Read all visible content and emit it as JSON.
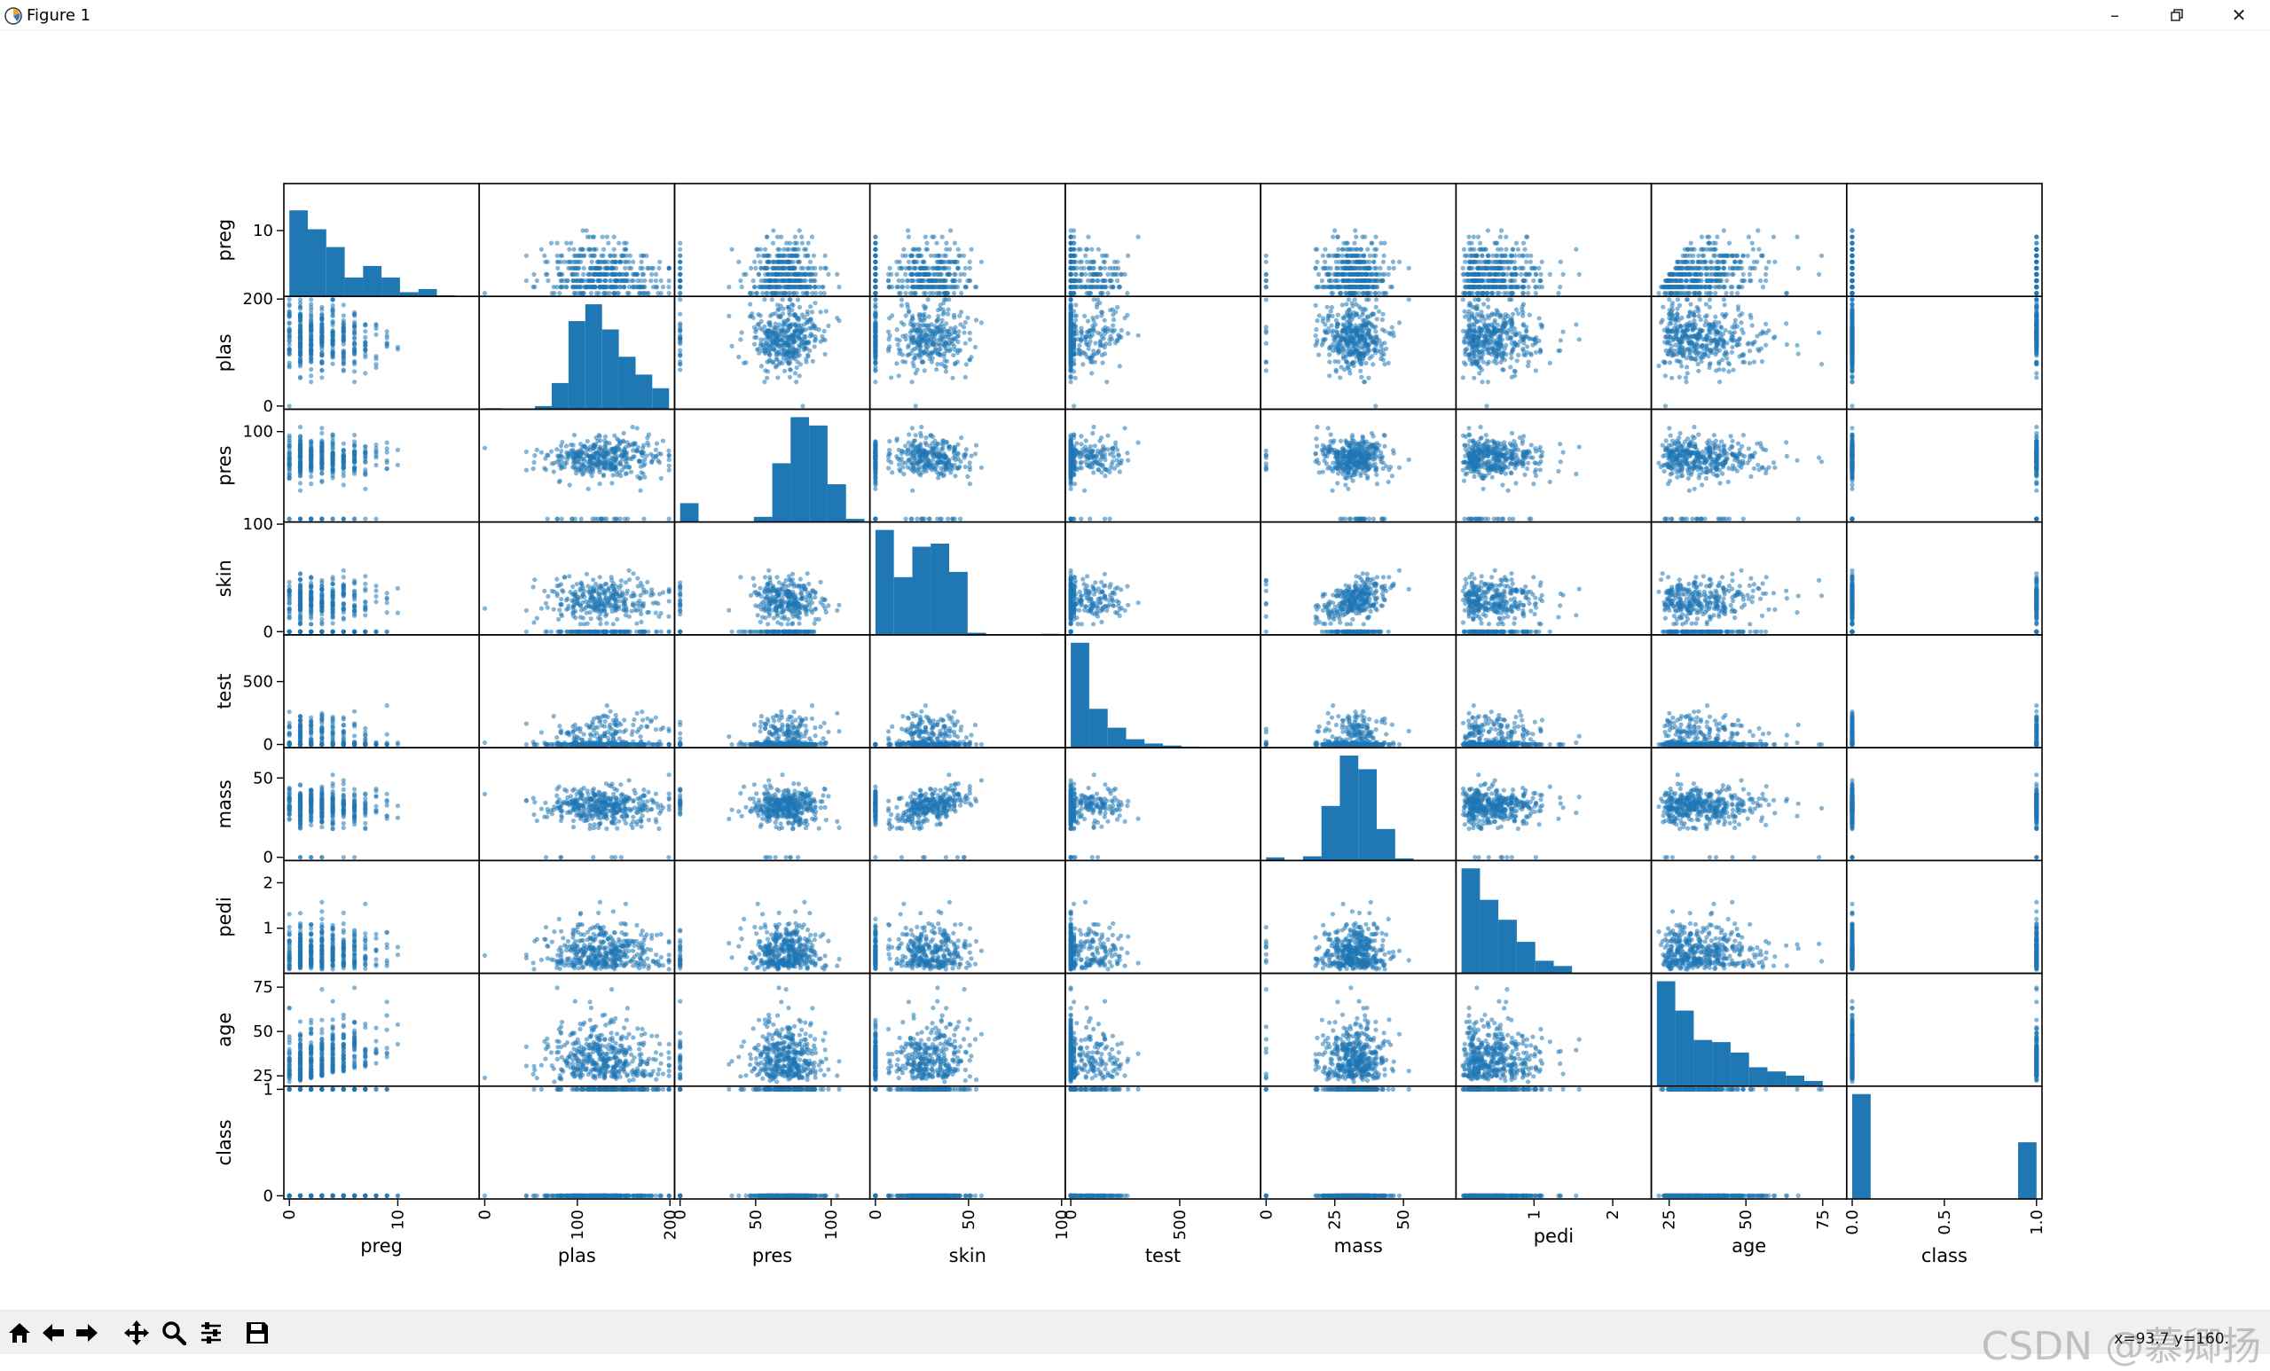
{
  "window": {
    "title": "Figure 1",
    "minimize_icon": "minimize-icon",
    "restore_icon": "restore-icon",
    "close_icon": "close-icon"
  },
  "toolbar": {
    "buttons": [
      "home-icon",
      "back-icon",
      "forward-icon",
      "pan-icon",
      "zoom-icon",
      "configure-subplots-icon",
      "save-icon"
    ],
    "coords": "x=93.7 y=160.",
    "watermark": "CSDN @慕卿扬"
  },
  "chart_data": {
    "type": "scatter",
    "variables": [
      "preg",
      "plas",
      "pres",
      "skin",
      "test",
      "mass",
      "pedi",
      "age",
      "class"
    ],
    "point_color": "#1f77b4",
    "ranges": {
      "preg": [
        0,
        17
      ],
      "plas": [
        0,
        199
      ],
      "pres": [
        0,
        122
      ],
      "skin": [
        0,
        99
      ],
      "test": [
        0,
        846
      ],
      "mass": [
        0,
        67.1
      ],
      "pedi": [
        0.078,
        2.42
      ],
      "age": [
        21,
        81
      ],
      "class": [
        0,
        1
      ]
    },
    "ticks": {
      "preg": [
        0,
        10
      ],
      "plas": [
        0,
        100,
        200
      ],
      "pres": [
        0,
        50,
        100
      ],
      "skin": [
        0,
        50,
        100
      ],
      "test": [
        0,
        500
      ],
      "mass": [
        0,
        25,
        50
      ],
      "pedi": [
        1,
        2
      ],
      "age": [
        25,
        50,
        75
      ],
      "class": [
        0.0,
        0.5,
        1.0
      ]
    },
    "ytick_labels": {
      "preg": [
        "10"
      ],
      "plas": [
        "0",
        "200"
      ],
      "pres": [
        "100"
      ],
      "skin": [
        "0",
        "100"
      ],
      "test": [
        "0",
        "500"
      ],
      "mass": [
        "0",
        "50"
      ],
      "pedi": [
        "1",
        "2"
      ],
      "age": [
        "25",
        "50",
        "75"
      ],
      "class": [
        "0",
        "1"
      ]
    },
    "xtick_labels": {
      "preg": [
        "0",
        "10"
      ],
      "plas": [
        "0",
        "100",
        "200"
      ],
      "pres": [
        "0",
        "50",
        "100"
      ],
      "skin": [
        "0",
        "50",
        "100"
      ],
      "test": [
        "0",
        "500"
      ],
      "mass": [
        "0",
        "25",
        "50"
      ],
      "pedi": [
        "1",
        "2"
      ],
      "age": [
        "25",
        "50",
        "75"
      ],
      "class": [
        "0.0",
        "0.5",
        "1.0"
      ]
    },
    "histograms": {
      "preg": [
        0.82,
        0.64,
        0.47,
        0.18,
        0.29,
        0.18,
        0.04,
        0.07,
        0.01,
        0.0
      ],
      "plas": [
        0.01,
        0.0,
        0.0,
        0.03,
        0.25,
        0.84,
        1.0,
        0.76,
        0.5,
        0.33,
        0.2
      ],
      "pres": [
        0.18,
        0.0,
        0.0,
        0.0,
        0.05,
        0.56,
        1.0,
        0.92,
        0.36,
        0.03
      ],
      "skin": [
        1.0,
        0.55,
        0.84,
        0.87,
        0.6,
        0.02,
        0.0,
        0.0,
        0.0,
        0.01
      ],
      "test": [
        1.0,
        0.37,
        0.19,
        0.08,
        0.04,
        0.02,
        0.01,
        0.0,
        0.0,
        0.0
      ],
      "mass": [
        0.03,
        0.0,
        0.04,
        0.52,
        1.0,
        0.87,
        0.3,
        0.02,
        0.0,
        0.0
      ],
      "pedi": [
        1.0,
        0.7,
        0.51,
        0.3,
        0.12,
        0.07,
        0.0,
        0.0,
        0.0,
        0.0
      ],
      "age": [
        1.0,
        0.72,
        0.44,
        0.42,
        0.32,
        0.18,
        0.14,
        0.1,
        0.05,
        0.0
      ],
      "class": [
        1.0,
        0.0,
        0.0,
        0.0,
        0.0,
        0.0,
        0.0,
        0.0,
        0.0,
        0.54
      ]
    }
  }
}
